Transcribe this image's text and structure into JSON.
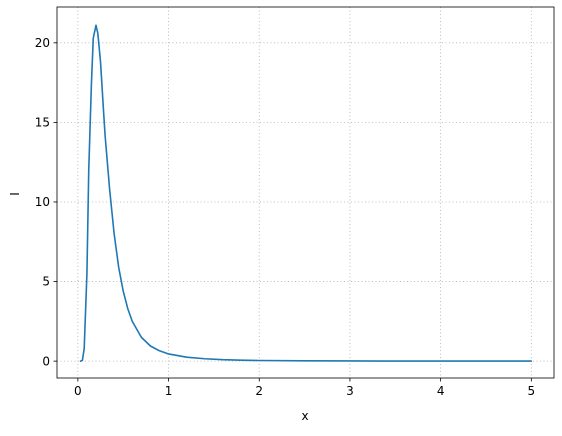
{
  "chart_data": {
    "type": "line",
    "title": "",
    "xlabel": "x",
    "ylabel": "I",
    "xlim": [
      -0.23,
      5.25
    ],
    "ylim": [
      -1.06,
      22.25
    ],
    "grid": true,
    "x_ticks": [
      0,
      1,
      2,
      3,
      4,
      5
    ],
    "y_ticks": [
      0,
      5,
      10,
      15,
      20
    ],
    "colors": {
      "line": "#1f77b4",
      "grid": "#b0b0b0",
      "axis": "#000000"
    },
    "series": [
      {
        "x": [
          0.03,
          0.05,
          0.07,
          0.1,
          0.12,
          0.15,
          0.17,
          0.2,
          0.22,
          0.25,
          0.28,
          0.3,
          0.35,
          0.4,
          0.45,
          0.5,
          0.55,
          0.6,
          0.7,
          0.8,
          0.9,
          1.0,
          1.2,
          1.4,
          1.6,
          1.8,
          2.0,
          2.5,
          3.0,
          3.5,
          4.0,
          4.5,
          5.0
        ],
        "y": [
          0.0,
          0.05,
          0.8,
          5.5,
          12.0,
          17.5,
          20.3,
          21.1,
          20.6,
          18.8,
          16.0,
          14.2,
          10.8,
          8.0,
          5.9,
          4.4,
          3.3,
          2.5,
          1.5,
          0.95,
          0.65,
          0.45,
          0.25,
          0.15,
          0.09,
          0.06,
          0.04,
          0.02,
          0.01,
          0.005,
          0.003,
          0.002,
          0.001
        ]
      }
    ]
  }
}
